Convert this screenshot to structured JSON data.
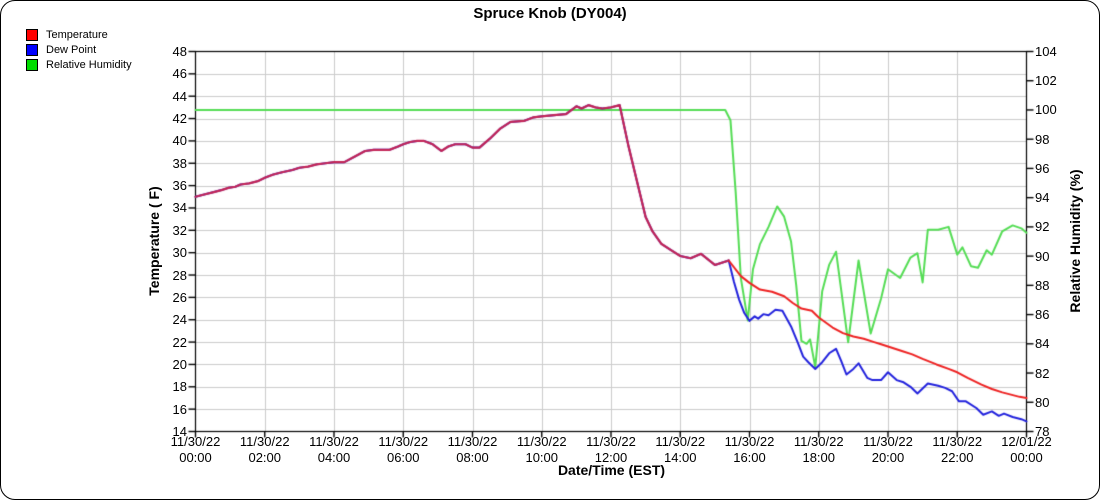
{
  "chart_data": {
    "type": "line",
    "title": "Spruce Knob (DY004)",
    "xlabel": "Date/Time (EST)",
    "grid": true,
    "legend_position": "top-left",
    "y_left": {
      "label": "Temperature ( F)",
      "min": 14,
      "max": 48,
      "tick_step": 2
    },
    "y_right": {
      "label": "Relative Humidity (%)",
      "min": 78,
      "max": 104,
      "tick_step": 2
    },
    "x_axis": {
      "hours_span": 24,
      "tick_interval_hours": 2,
      "ticks": [
        {
          "date": "11/30/22",
          "time": "00:00"
        },
        {
          "date": "11/30/22",
          "time": "02:00"
        },
        {
          "date": "11/30/22",
          "time": "04:00"
        },
        {
          "date": "11/30/22",
          "time": "06:00"
        },
        {
          "date": "11/30/22",
          "time": "08:00"
        },
        {
          "date": "11/30/22",
          "time": "10:00"
        },
        {
          "date": "11/30/22",
          "time": "12:00"
        },
        {
          "date": "11/30/22",
          "time": "14:00"
        },
        {
          "date": "11/30/22",
          "time": "16:00"
        },
        {
          "date": "11/30/22",
          "time": "18:00"
        },
        {
          "date": "11/30/22",
          "time": "20:00"
        },
        {
          "date": "11/30/22",
          "time": "22:00"
        },
        {
          "date": "12/01/22",
          "time": "00:00"
        }
      ]
    },
    "colors": {
      "background": "#ffffff",
      "grid": "#cccccc",
      "axis": "#000000",
      "temperature_line": "#ee2222",
      "dew_point_line": "#2222dd",
      "humidity_line": "#55dd55",
      "temp_dew_overlap": "#c22456"
    },
    "overlap_until_hour": 15.4,
    "series": [
      {
        "name": "Temperature",
        "axis": "left",
        "units": "F",
        "color": "#ee2222",
        "points": [
          [
            0,
            35.0
          ],
          [
            0.25,
            35.2
          ],
          [
            0.5,
            35.4
          ],
          [
            0.75,
            35.6
          ],
          [
            0.95,
            35.8
          ],
          [
            1.15,
            35.9
          ],
          [
            1.3,
            36.1
          ],
          [
            1.55,
            36.2
          ],
          [
            1.8,
            36.4
          ],
          [
            2.0,
            36.7
          ],
          [
            2.25,
            37.0
          ],
          [
            2.5,
            37.2
          ],
          [
            2.8,
            37.4
          ],
          [
            3.0,
            37.6
          ],
          [
            3.25,
            37.7
          ],
          [
            3.5,
            37.9
          ],
          [
            3.75,
            38.0
          ],
          [
            4.0,
            38.1
          ],
          [
            4.3,
            38.1
          ],
          [
            4.6,
            38.6
          ],
          [
            4.9,
            39.1
          ],
          [
            5.15,
            39.2
          ],
          [
            5.6,
            39.2
          ],
          [
            5.85,
            39.5
          ],
          [
            6.0,
            39.7
          ],
          [
            6.2,
            39.9
          ],
          [
            6.4,
            40.0
          ],
          [
            6.6,
            40.0
          ],
          [
            6.85,
            39.7
          ],
          [
            7.1,
            39.1
          ],
          [
            7.3,
            39.5
          ],
          [
            7.5,
            39.7
          ],
          [
            7.8,
            39.7
          ],
          [
            8.0,
            39.4
          ],
          [
            8.2,
            39.4
          ],
          [
            8.5,
            40.2
          ],
          [
            8.8,
            41.1
          ],
          [
            9.1,
            41.7
          ],
          [
            9.5,
            41.8
          ],
          [
            9.75,
            42.1
          ],
          [
            10.0,
            42.2
          ],
          [
            10.35,
            42.3
          ],
          [
            10.7,
            42.4
          ],
          [
            11.0,
            43.1
          ],
          [
            11.15,
            42.9
          ],
          [
            11.35,
            43.2
          ],
          [
            11.55,
            43.0
          ],
          [
            11.75,
            42.9
          ],
          [
            12.0,
            43.0
          ],
          [
            12.25,
            43.2
          ],
          [
            12.5,
            39.6
          ],
          [
            12.75,
            36.4
          ],
          [
            13.0,
            33.2
          ],
          [
            13.2,
            31.9
          ],
          [
            13.45,
            30.8
          ],
          [
            13.7,
            30.3
          ],
          [
            14.0,
            29.7
          ],
          [
            14.3,
            29.5
          ],
          [
            14.6,
            29.9
          ],
          [
            15.0,
            28.9
          ],
          [
            15.2,
            29.1
          ],
          [
            15.4,
            29.3
          ],
          [
            15.75,
            27.9
          ],
          [
            16.0,
            27.3
          ],
          [
            16.3,
            26.7
          ],
          [
            16.65,
            26.5
          ],
          [
            17.0,
            26.1
          ],
          [
            17.25,
            25.5
          ],
          [
            17.5,
            25.0
          ],
          [
            17.8,
            24.8
          ],
          [
            18.0,
            24.2
          ],
          [
            18.4,
            23.3
          ],
          [
            18.7,
            22.8
          ],
          [
            19.0,
            22.5
          ],
          [
            19.3,
            22.3
          ],
          [
            19.6,
            22.0
          ],
          [
            19.8,
            21.8
          ],
          [
            20.0,
            21.6
          ],
          [
            20.4,
            21.2
          ],
          [
            20.7,
            20.9
          ],
          [
            21.0,
            20.5
          ],
          [
            21.4,
            20.0
          ],
          [
            21.75,
            19.6
          ],
          [
            22.0,
            19.3
          ],
          [
            22.3,
            18.8
          ],
          [
            22.7,
            18.2
          ],
          [
            23.0,
            17.8
          ],
          [
            23.3,
            17.5
          ],
          [
            23.55,
            17.3
          ],
          [
            23.8,
            17.1
          ],
          [
            24.0,
            17.0
          ]
        ]
      },
      {
        "name": "Dew Point",
        "axis": "left",
        "units": "F",
        "color": "#2222dd",
        "points": [
          [
            0,
            35.0
          ],
          [
            0.25,
            35.2
          ],
          [
            0.5,
            35.4
          ],
          [
            0.75,
            35.6
          ],
          [
            0.95,
            35.8
          ],
          [
            1.15,
            35.9
          ],
          [
            1.3,
            36.1
          ],
          [
            1.55,
            36.2
          ],
          [
            1.8,
            36.4
          ],
          [
            2.0,
            36.7
          ],
          [
            2.25,
            37.0
          ],
          [
            2.5,
            37.2
          ],
          [
            2.8,
            37.4
          ],
          [
            3.0,
            37.6
          ],
          [
            3.25,
            37.7
          ],
          [
            3.5,
            37.9
          ],
          [
            3.75,
            38.0
          ],
          [
            4.0,
            38.1
          ],
          [
            4.3,
            38.1
          ],
          [
            4.6,
            38.6
          ],
          [
            4.9,
            39.1
          ],
          [
            5.15,
            39.2
          ],
          [
            5.6,
            39.2
          ],
          [
            5.85,
            39.5
          ],
          [
            6.0,
            39.7
          ],
          [
            6.2,
            39.9
          ],
          [
            6.4,
            40.0
          ],
          [
            6.6,
            40.0
          ],
          [
            6.85,
            39.7
          ],
          [
            7.1,
            39.1
          ],
          [
            7.3,
            39.5
          ],
          [
            7.5,
            39.7
          ],
          [
            7.8,
            39.7
          ],
          [
            8.0,
            39.4
          ],
          [
            8.2,
            39.4
          ],
          [
            8.5,
            40.2
          ],
          [
            8.8,
            41.1
          ],
          [
            9.1,
            41.7
          ],
          [
            9.5,
            41.8
          ],
          [
            9.75,
            42.1
          ],
          [
            10.0,
            42.2
          ],
          [
            10.35,
            42.3
          ],
          [
            10.7,
            42.4
          ],
          [
            11.0,
            43.1
          ],
          [
            11.15,
            42.9
          ],
          [
            11.35,
            43.2
          ],
          [
            11.55,
            43.0
          ],
          [
            11.75,
            42.9
          ],
          [
            12.0,
            43.0
          ],
          [
            12.25,
            43.2
          ],
          [
            12.5,
            39.6
          ],
          [
            12.75,
            36.4
          ],
          [
            13.0,
            33.2
          ],
          [
            13.2,
            31.9
          ],
          [
            13.45,
            30.8
          ],
          [
            13.7,
            30.3
          ],
          [
            14.0,
            29.7
          ],
          [
            14.3,
            29.5
          ],
          [
            14.6,
            29.9
          ],
          [
            15.0,
            28.9
          ],
          [
            15.2,
            29.1
          ],
          [
            15.4,
            29.3
          ],
          [
            15.55,
            27.4
          ],
          [
            15.7,
            25.8
          ],
          [
            15.85,
            24.6
          ],
          [
            16.0,
            23.9
          ],
          [
            16.15,
            24.3
          ],
          [
            16.25,
            24.1
          ],
          [
            16.4,
            24.5
          ],
          [
            16.55,
            24.4
          ],
          [
            16.75,
            24.9
          ],
          [
            16.95,
            24.8
          ],
          [
            17.2,
            23.4
          ],
          [
            17.4,
            21.9
          ],
          [
            17.55,
            20.7
          ],
          [
            17.7,
            20.2
          ],
          [
            17.9,
            19.6
          ],
          [
            18.1,
            20.2
          ],
          [
            18.3,
            21.0
          ],
          [
            18.5,
            21.4
          ],
          [
            18.65,
            20.3
          ],
          [
            18.8,
            19.1
          ],
          [
            19.0,
            19.6
          ],
          [
            19.15,
            20.1
          ],
          [
            19.4,
            18.8
          ],
          [
            19.55,
            18.6
          ],
          [
            19.8,
            18.6
          ],
          [
            20.0,
            19.3
          ],
          [
            20.25,
            18.6
          ],
          [
            20.45,
            18.4
          ],
          [
            20.65,
            18.0
          ],
          [
            20.85,
            17.4
          ],
          [
            21.15,
            18.3
          ],
          [
            21.45,
            18.1
          ],
          [
            21.65,
            17.9
          ],
          [
            21.85,
            17.6
          ],
          [
            22.05,
            16.7
          ],
          [
            22.25,
            16.7
          ],
          [
            22.55,
            16.1
          ],
          [
            22.75,
            15.5
          ],
          [
            23.0,
            15.8
          ],
          [
            23.2,
            15.4
          ],
          [
            23.35,
            15.6
          ],
          [
            23.6,
            15.3
          ],
          [
            23.85,
            15.1
          ],
          [
            24.0,
            14.9
          ]
        ]
      },
      {
        "name": "Relative Humidity",
        "axis": "right",
        "units": "%",
        "color": "#55dd55",
        "points": [
          [
            0,
            100
          ],
          [
            15.3,
            100
          ],
          [
            15.45,
            99.3
          ],
          [
            15.6,
            94.4
          ],
          [
            15.75,
            88.5
          ],
          [
            15.95,
            85.6
          ],
          [
            16.1,
            89.1
          ],
          [
            16.3,
            90.8
          ],
          [
            16.55,
            92.0
          ],
          [
            16.8,
            93.4
          ],
          [
            17.0,
            92.7
          ],
          [
            17.2,
            91.0
          ],
          [
            17.35,
            88.0
          ],
          [
            17.5,
            84.2
          ],
          [
            17.65,
            84.0
          ],
          [
            17.75,
            84.3
          ],
          [
            17.9,
            82.4
          ],
          [
            18.1,
            87.6
          ],
          [
            18.3,
            89.4
          ],
          [
            18.5,
            90.3
          ],
          [
            18.85,
            84.1
          ],
          [
            19.15,
            89.7
          ],
          [
            19.5,
            84.7
          ],
          [
            19.8,
            87.1
          ],
          [
            20.0,
            89.1
          ],
          [
            20.35,
            88.5
          ],
          [
            20.65,
            89.9
          ],
          [
            20.85,
            90.2
          ],
          [
            21.0,
            88.2
          ],
          [
            21.15,
            91.8
          ],
          [
            21.45,
            91.8
          ],
          [
            21.75,
            92.0
          ],
          [
            22.0,
            90.1
          ],
          [
            22.15,
            90.6
          ],
          [
            22.4,
            89.3
          ],
          [
            22.6,
            89.2
          ],
          [
            22.85,
            90.4
          ],
          [
            23.0,
            90.1
          ],
          [
            23.3,
            91.7
          ],
          [
            23.6,
            92.1
          ],
          [
            23.85,
            91.9
          ],
          [
            24.0,
            91.6
          ]
        ]
      }
    ]
  },
  "legend": {
    "items": [
      {
        "label": "Temperature",
        "color": "#ff0000"
      },
      {
        "label": "Dew Point",
        "color": "#0000ff"
      },
      {
        "label": "Relative Humidity",
        "color": "#00dd00"
      }
    ]
  }
}
